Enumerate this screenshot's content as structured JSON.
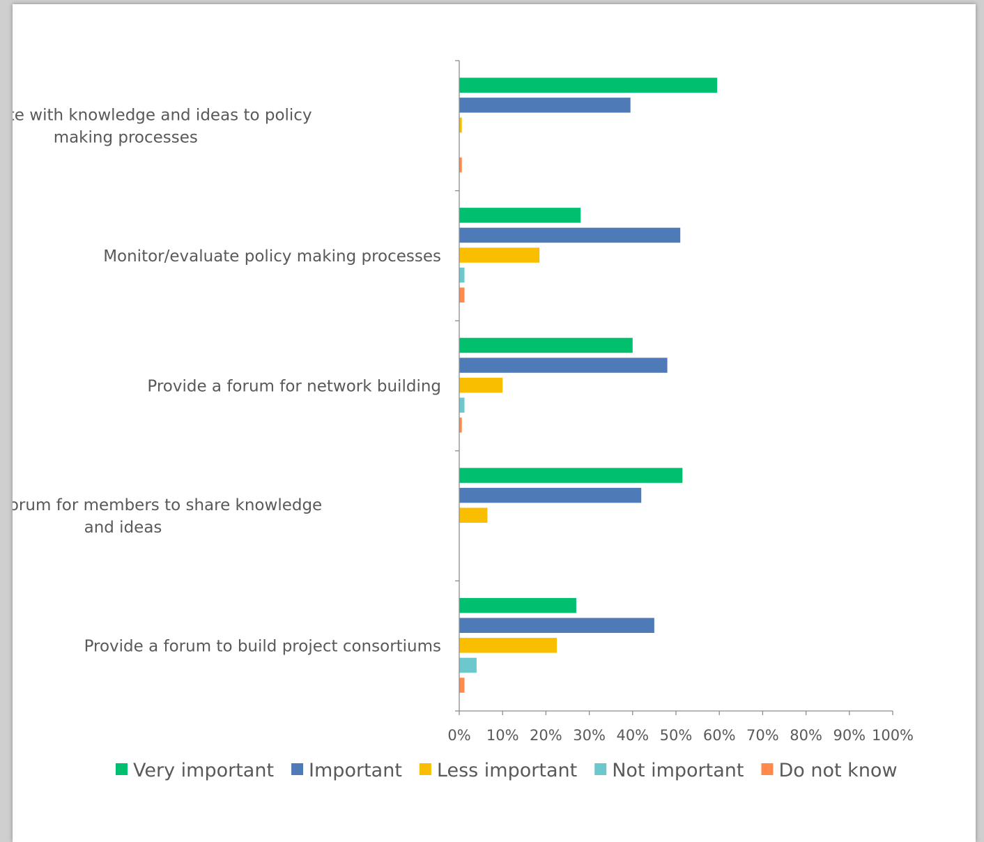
{
  "chart_data": {
    "type": "bar",
    "orientation": "horizontal",
    "categories": [
      "Contribute with knowledge and ideas to policy making processes",
      "Monitor/evaluate policy making processes",
      "Provide a forum for network building",
      "Provide a forum for members to share knowledge and ideas",
      "Provide a forum to build project consortiums"
    ],
    "category_lines": [
      [
        "Contribute with knowledge and ideas to policy",
        "making processes"
      ],
      [
        "Monitor/evaluate policy making processes"
      ],
      [
        "Provide a forum for network building"
      ],
      [
        "Provide a forum for members to share knowledge",
        "and ideas"
      ],
      [
        "Provide a forum to build project consortiums"
      ]
    ],
    "series": [
      {
        "name": "Very important",
        "color": "#00BF6F",
        "values": [
          59.5,
          28,
          40,
          51.5,
          27
        ]
      },
      {
        "name": "Important",
        "color": "#4F7AB8",
        "values": [
          39.5,
          51,
          48,
          42,
          45
        ]
      },
      {
        "name": "Less important",
        "color": "#F9BE00",
        "values": [
          0.6,
          18.5,
          10,
          6.5,
          22.5
        ]
      },
      {
        "name": "Not important",
        "color": "#6CC8CC",
        "values": [
          0,
          1.2,
          1.2,
          0,
          4
        ]
      },
      {
        "name": "Do not know",
        "color": "#FF8A4C",
        "values": [
          0.6,
          1.2,
          0.6,
          0,
          1.2
        ]
      }
    ],
    "xlim": [
      0,
      100
    ],
    "xticks": [
      "0%",
      "10%",
      "20%",
      "30%",
      "40%",
      "50%",
      "60%",
      "70%",
      "80%",
      "90%",
      "100%"
    ],
    "grid": false,
    "legend_position": "bottom"
  }
}
